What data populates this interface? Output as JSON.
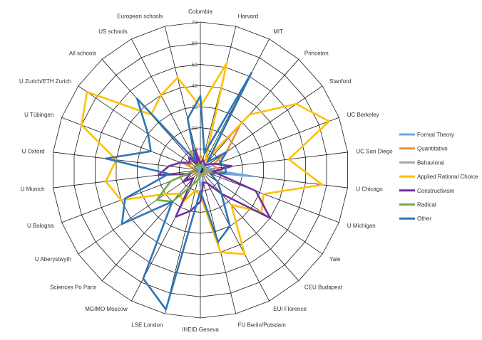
{
  "chart_data": {
    "type": "radar",
    "categories": [
      "Columbia",
      "Harvard",
      "MIT",
      "Princeton",
      "Stanford",
      "UC Berkeley",
      "UC San Diego",
      "U Chicago",
      "U Michigan",
      "Yale",
      "CEU Budapest",
      "EUI Florence",
      "FU Berlin/Potsdam",
      "IHEID Geneva",
      "LSE London",
      "MGIMO Moscow",
      "Sciences Po Paris",
      "U Aberystwyth",
      "U Bologna",
      "U Munich",
      "U Oxford",
      "U Tübingen",
      "U Zurich/ETH Zurich",
      "All schools",
      "US schools",
      "European schools"
    ],
    "rlim": [
      0,
      70
    ],
    "ticks": [
      0,
      10,
      20,
      30,
      40,
      50,
      60,
      70
    ],
    "series": [
      {
        "name": "Formal Theory",
        "color": "#6fa8dc",
        "values": [
          0,
          2,
          3,
          4,
          4,
          5,
          3,
          25,
          3,
          2,
          2,
          2,
          5,
          8,
          2,
          1,
          1,
          0,
          1,
          0,
          1,
          1,
          1,
          3,
          3,
          1
        ]
      },
      {
        "name": "Quantitative",
        "color": "#e98f3d",
        "values": [
          7,
          5,
          5,
          28,
          15,
          6,
          8,
          10,
          4,
          3,
          3,
          3,
          3,
          2,
          2,
          3,
          3,
          2,
          3,
          4,
          2,
          7,
          5,
          6,
          10,
          3
        ]
      },
      {
        "name": "Behavioral",
        "color": "#a6a6a6",
        "values": [
          3,
          2,
          2,
          2,
          3,
          2,
          2,
          2,
          2,
          2,
          2,
          2,
          2,
          2,
          2,
          2,
          2,
          2,
          2,
          2,
          2,
          2,
          2,
          2,
          2,
          2
        ]
      },
      {
        "name": "Applied Rational Choice",
        "color": "#ffc000",
        "values": [
          30,
          52,
          5,
          35,
          55,
          65,
          42,
          58,
          32,
          35,
          22,
          45,
          40,
          12,
          10,
          17,
          15,
          20,
          40,
          45,
          40,
          60,
          65,
          35,
          40,
          45
        ]
      },
      {
        "name": "Constructivism",
        "color": "#7030a0",
        "values": [
          3,
          5,
          4,
          3,
          5,
          8,
          15,
          6,
          28,
          40,
          15,
          7,
          6,
          15,
          20,
          25,
          5,
          10,
          5,
          20,
          15,
          10,
          6,
          8,
          3,
          10
        ]
      },
      {
        "name": "Radical",
        "color": "#70ad47",
        "values": [
          2,
          2,
          2,
          2,
          2,
          2,
          2,
          2,
          2,
          2,
          2,
          2,
          2,
          2,
          5,
          8,
          20,
          25,
          15,
          3,
          2,
          3,
          3,
          3,
          2,
          3
        ]
      },
      {
        "name": "Other",
        "color": "#2e75b6",
        "values": [
          35,
          8,
          52,
          5,
          15,
          10,
          12,
          12,
          5,
          10,
          15,
          30,
          35,
          10,
          68,
          58,
          20,
          45,
          38,
          15,
          45,
          25,
          30,
          45,
          5,
          25
        ]
      }
    ]
  }
}
